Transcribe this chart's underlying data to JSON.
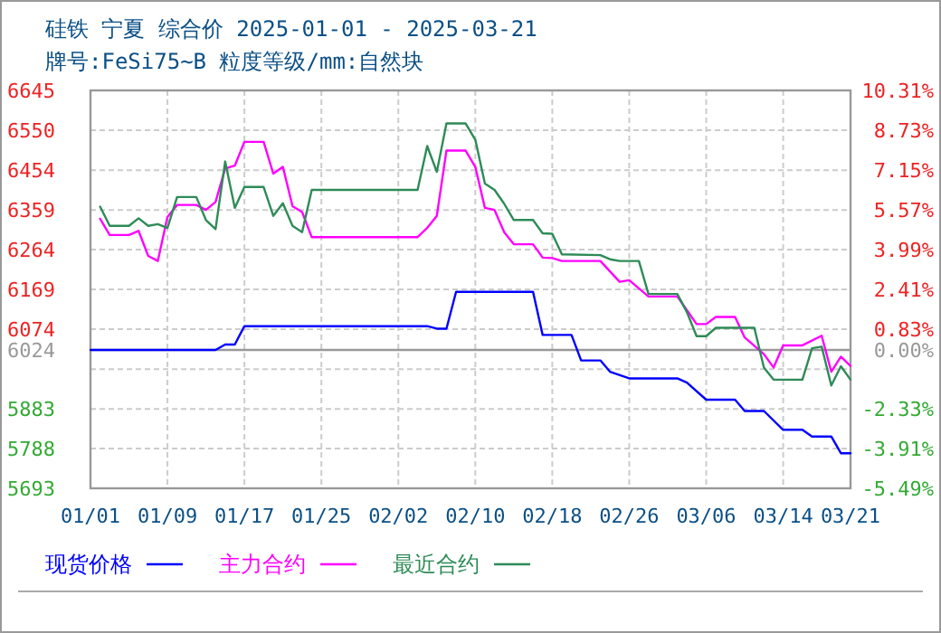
{
  "chart_data": {
    "type": "line",
    "title": "硅铁 宁夏 综合价 2025-01-01 - 2025-03-21",
    "subtitle": "牌号:FeSi75~B 粒度等级/mm:自然块",
    "xlim": [
      "2025-01-01",
      "2025-03-21"
    ],
    "xticks": [
      {
        "value": "2025-01-01",
        "label": "01/01"
      },
      {
        "value": "2025-01-09",
        "label": "01/09"
      },
      {
        "value": "2025-01-17",
        "label": "01/17"
      },
      {
        "value": "2025-01-25",
        "label": "01/25"
      },
      {
        "value": "2025-02-02",
        "label": "02/02"
      },
      {
        "value": "2025-02-10",
        "label": "02/10"
      },
      {
        "value": "2025-02-18",
        "label": "02/18"
      },
      {
        "value": "2025-02-26",
        "label": "02/26"
      },
      {
        "value": "2025-03-06",
        "label": "03/06"
      },
      {
        "value": "2025-03-14",
        "label": "03/14"
      },
      {
        "value": "2025-03-21",
        "label": "03/21"
      }
    ],
    "ylim": [
      5693,
      6645
    ],
    "yticks": [
      5693,
      5788,
      5883,
      {
        "value": 5978,
        "label": null
      },
      6024,
      6074,
      6169,
      6264,
      6359,
      6454,
      6550,
      6645
    ],
    "y2lim": [
      -5.49,
      10.31
    ],
    "y2ticks": [
      {
        "value": -5.49,
        "label": "-5.49%"
      },
      {
        "value": -3.91,
        "label": "-3.91%"
      },
      {
        "value": -2.33,
        "label": "-2.33%"
      },
      {
        "value": -0.75,
        "label": null
      },
      {
        "value": 0,
        "label": "0.00%"
      },
      {
        "value": 0.83,
        "label": "0.83%"
      },
      {
        "value": 2.41,
        "label": "2.41%"
      },
      {
        "value": 3.99,
        "label": "3.99%"
      },
      {
        "value": 5.57,
        "label": "5.57%"
      },
      {
        "value": 7.15,
        "label": "7.15%"
      },
      {
        "value": 8.73,
        "label": "8.73%"
      },
      {
        "value": 10.31,
        "label": "10.31%"
      }
    ],
    "ref_lines": [
      {
        "axis": "y",
        "value": 6024,
        "color": "#999999"
      }
    ],
    "grid": true,
    "legend": "bottom left",
    "line_style": "solid",
    "marker": "none",
    "series": [
      {
        "name": "现货价格",
        "color": "#0000ff",
        "x": [
          "2025-01-01",
          "2025-01-14",
          "2025-01-15",
          "2025-01-16",
          "2025-01-17",
          "2025-02-05",
          "2025-02-06",
          "2025-02-07",
          "2025-02-08",
          "2025-02-16",
          "2025-02-17",
          "2025-02-20",
          "2025-02-21",
          "2025-02-23",
          "2025-02-24",
          "2025-02-26",
          "2025-03-03",
          "2025-03-04",
          "2025-03-06",
          "2025-03-09",
          "2025-03-10",
          "2025-03-12",
          "2025-03-14",
          "2025-03-16",
          "2025-03-17",
          "2025-03-19",
          "2025-03-20",
          "2025-03-21"
        ],
        "values": [
          6024,
          6024,
          6037,
          6037,
          6081,
          6081,
          6075,
          6075,
          6163,
          6163,
          6060,
          6060,
          5999,
          5999,
          5972,
          5956,
          5956,
          5946,
          5905,
          5905,
          5878,
          5878,
          5833,
          5833,
          5817,
          5817,
          5777,
          5777
        ]
      },
      {
        "name": "主力合约",
        "color": "#ff00ff",
        "x": [
          "2025-01-02",
          "2025-01-03",
          "2025-01-05",
          "2025-01-06",
          "2025-01-07",
          "2025-01-08",
          "2025-01-09",
          "2025-01-10",
          "2025-01-12",
          "2025-01-13",
          "2025-01-14",
          "2025-01-15",
          "2025-01-16",
          "2025-01-17",
          "2025-01-19",
          "2025-01-20",
          "2025-01-21",
          "2025-01-22",
          "2025-01-23",
          "2025-01-24",
          "2025-02-04",
          "2025-02-05",
          "2025-02-06",
          "2025-02-07",
          "2025-02-09",
          "2025-02-10",
          "2025-02-11",
          "2025-02-12",
          "2025-02-13",
          "2025-02-14",
          "2025-02-16",
          "2025-02-17",
          "2025-02-18",
          "2025-02-19",
          "2025-02-23",
          "2025-02-25",
          "2025-02-26",
          "2025-02-28",
          "2025-03-03",
          "2025-03-05",
          "2025-03-06",
          "2025-03-07",
          "2025-03-09",
          "2025-03-10",
          "2025-03-12",
          "2025-03-13",
          "2025-03-14",
          "2025-03-16",
          "2025-03-18",
          "2025-03-19",
          "2025-03-20",
          "2025-03-21"
        ],
        "values": [
          6338,
          6299,
          6299,
          6309,
          6249,
          6237,
          6342,
          6371,
          6371,
          6359,
          6378,
          6458,
          6465,
          6522,
          6522,
          6446,
          6462,
          6368,
          6354,
          6294,
          6294,
          6316,
          6345,
          6501,
          6501,
          6462,
          6364,
          6359,
          6306,
          6277,
          6277,
          6245,
          6244,
          6237,
          6237,
          6187,
          6191,
          6152,
          6152,
          6086,
          6086,
          6103,
          6103,
          6054,
          6014,
          5982,
          6035,
          6035,
          6058,
          5972,
          6008,
          5986
        ]
      },
      {
        "name": "最近合约",
        "color": "#2e8b57",
        "x": [
          "2025-01-02",
          "2025-01-03",
          "2025-01-05",
          "2025-01-06",
          "2025-01-07",
          "2025-01-08",
          "2025-01-09",
          "2025-01-10",
          "2025-01-12",
          "2025-01-13",
          "2025-01-14",
          "2025-01-15",
          "2025-01-16",
          "2025-01-17",
          "2025-01-19",
          "2025-01-20",
          "2025-01-21",
          "2025-01-22",
          "2025-01-23",
          "2025-01-24",
          "2025-02-04",
          "2025-02-05",
          "2025-02-06",
          "2025-02-07",
          "2025-02-09",
          "2025-02-10",
          "2025-02-11",
          "2025-02-12",
          "2025-02-13",
          "2025-02-14",
          "2025-02-16",
          "2025-02-17",
          "2025-02-18",
          "2025-02-19",
          "2025-02-23",
          "2025-02-24",
          "2025-02-25",
          "2025-02-27",
          "2025-02-28",
          "2025-03-03",
          "2025-03-04",
          "2025-03-05",
          "2025-03-06",
          "2025-03-07",
          "2025-03-11",
          "2025-03-12",
          "2025-03-13",
          "2025-03-16",
          "2025-03-17",
          "2025-03-18",
          "2025-03-19",
          "2025-03-20",
          "2025-03-21"
        ],
        "values": [
          6367,
          6321,
          6321,
          6339,
          6321,
          6325,
          6316,
          6390,
          6390,
          6335,
          6313,
          6475,
          6364,
          6414,
          6414,
          6345,
          6375,
          6321,
          6306,
          6407,
          6407,
          6512,
          6450,
          6566,
          6566,
          6527,
          6422,
          6407,
          6374,
          6335,
          6335,
          6303,
          6302,
          6253,
          6251,
          6241,
          6237,
          6237,
          6158,
          6158,
          6114,
          6057,
          6057,
          6077,
          6077,
          5982,
          5953,
          5953,
          6028,
          6032,
          5939,
          5985,
          5953
        ]
      }
    ]
  }
}
